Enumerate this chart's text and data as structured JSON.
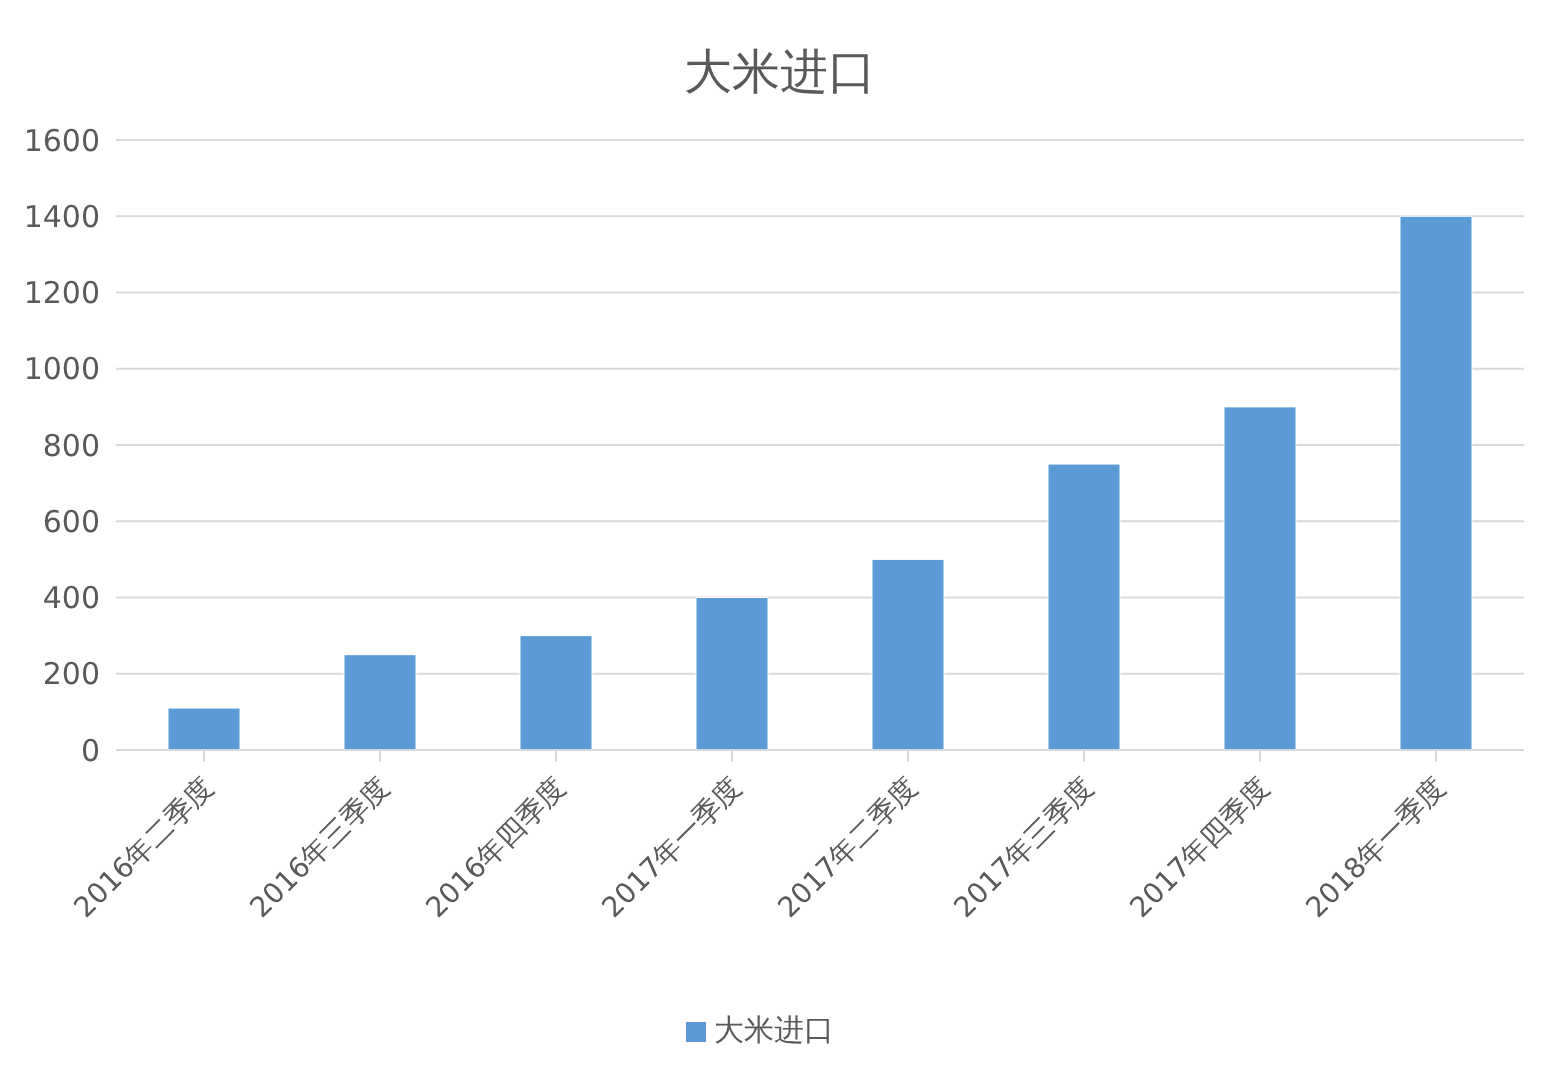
{
  "chart_data": {
    "type": "bar",
    "title": "大米进口",
    "categories": [
      "2016年二季度",
      "2016年三季度",
      "2016年四季度",
      "2017年一季度",
      "2017年二季度",
      "2017年三季度",
      "2017年四季度",
      "2018年一季度"
    ],
    "series": [
      {
        "name": "大米进口",
        "color": "#5b9bd5",
        "values": [
          110,
          250,
          300,
          400,
          500,
          750,
          900,
          1400
        ]
      }
    ],
    "ylim": [
      0,
      1600
    ],
    "yticks": [
      0,
      200,
      400,
      600,
      800,
      1000,
      1200,
      1400,
      1600
    ],
    "grid": "y",
    "legend": "bottom"
  }
}
